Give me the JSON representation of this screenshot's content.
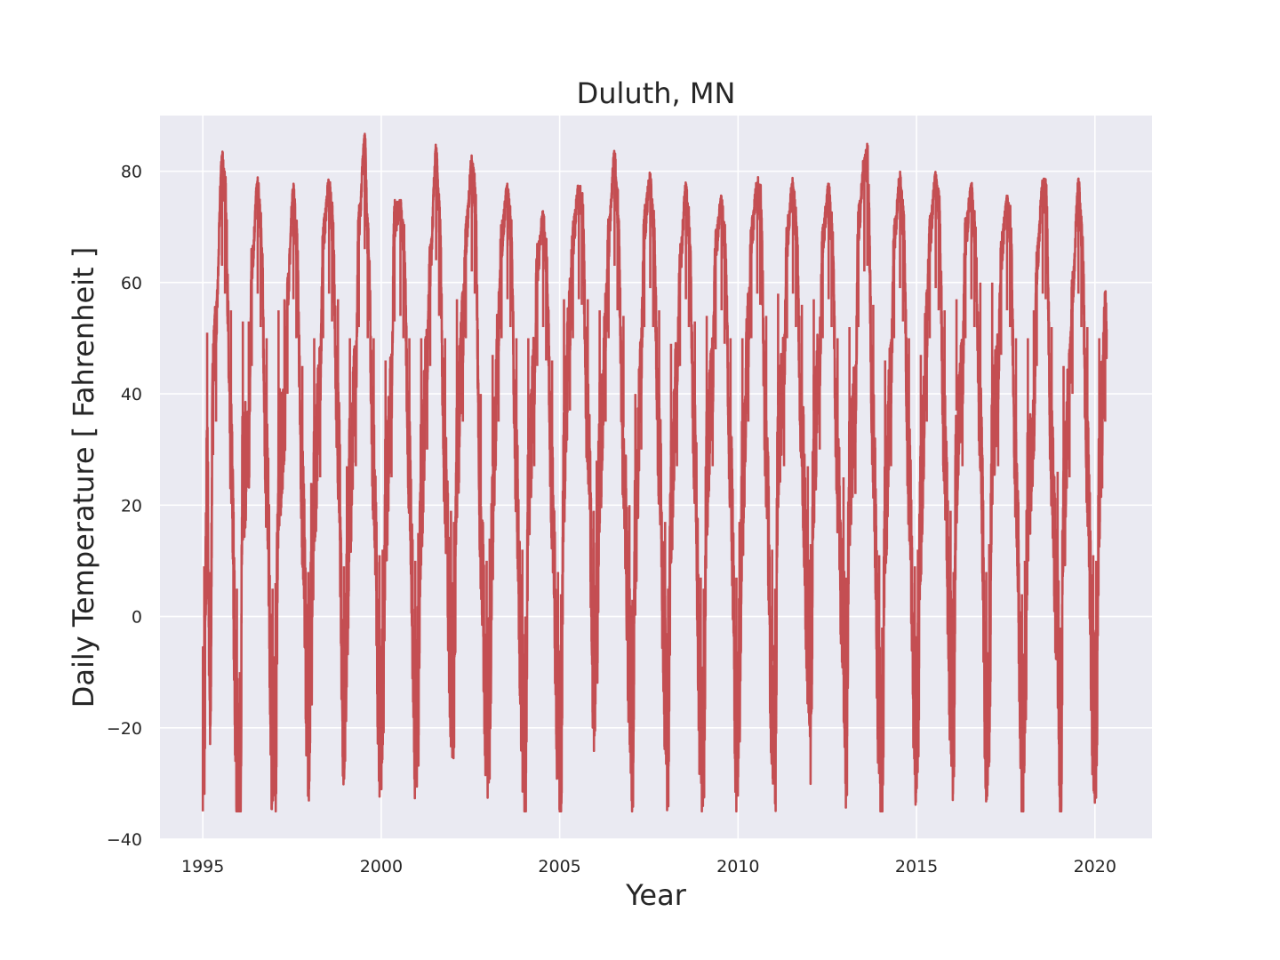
{
  "chart_data": {
    "type": "line",
    "title": "Duluth, MN",
    "xlabel": "Year",
    "ylabel": "Daily Temperature [ Fahrenheit ]",
    "xlim": [
      1993.8,
      2021.6
    ],
    "ylim": [
      -40,
      90
    ],
    "x_ticks": [
      "1995",
      "2000",
      "2005",
      "2010",
      "2015",
      "2020"
    ],
    "y_ticks": [
      "−40",
      "−20",
      "0",
      "20",
      "40",
      "60",
      "80"
    ],
    "grid": true,
    "legend": "none",
    "background_color": "#eaeaf2",
    "series": [
      {
        "color": "#c44e52",
        "x_start": "1995-01-01",
        "x_end": "2020-04-30",
        "points": [
          [
            "1995-01",
            -11
          ],
          [
            "1995-02",
            31
          ],
          [
            "1995-03",
            -12
          ],
          [
            "1995-04",
            49
          ],
          [
            "1995-05",
            55
          ],
          [
            "1995-07",
            83
          ],
          [
            "1995-08",
            78
          ],
          [
            "1995-10",
            35
          ],
          [
            "1995-12",
            -15
          ],
          [
            "1996-01",
            -30
          ],
          [
            "1996-02",
            33
          ],
          [
            "1996-04",
            33
          ],
          [
            "1996-05",
            65
          ],
          [
            "1996-07",
            78
          ],
          [
            "1996-08",
            72
          ],
          [
            "1996-10",
            30
          ],
          [
            "1996-12",
            -15
          ],
          [
            "1997-01",
            -14
          ],
          [
            "1997-02",
            35
          ],
          [
            "1997-04",
            37
          ],
          [
            "1997-05",
            60
          ],
          [
            "1997-07",
            77
          ],
          [
            "1997-08",
            70
          ],
          [
            "1997-10",
            25
          ],
          [
            "1997-12",
            -12
          ],
          [
            "1998-01",
            4
          ],
          [
            "1998-02",
            30
          ],
          [
            "1998-04",
            45
          ],
          [
            "1998-05",
            70
          ],
          [
            "1998-07",
            78
          ],
          [
            "1998-08",
            73
          ],
          [
            "1998-10",
            37
          ],
          [
            "1998-12",
            -11
          ],
          [
            "1999-01",
            7
          ],
          [
            "1999-02",
            30
          ],
          [
            "1999-04",
            47
          ],
          [
            "1999-05",
            72
          ],
          [
            "1999-07",
            86
          ],
          [
            "1999-08",
            70
          ],
          [
            "1999-10",
            30
          ],
          [
            "1999-12",
            -9
          ],
          [
            "2000-01",
            -8
          ],
          [
            "2000-02",
            26
          ],
          [
            "2000-04",
            45
          ],
          [
            "2000-05",
            73
          ],
          [
            "2000-07",
            74
          ],
          [
            "2000-08",
            70
          ],
          [
            "2000-10",
            30
          ],
          [
            "2000-12",
            -10
          ],
          [
            "2001-01",
            -5
          ],
          [
            "2001-02",
            30
          ],
          [
            "2001-04",
            50
          ],
          [
            "2001-05",
            65
          ],
          [
            "2001-07",
            84
          ],
          [
            "2001-08",
            74
          ],
          [
            "2001-10",
            30
          ],
          [
            "2001-12",
            -1
          ],
          [
            "2002-01",
            -3
          ],
          [
            "2002-02",
            37
          ],
          [
            "2002-04",
            55
          ],
          [
            "2002-05",
            70
          ],
          [
            "2002-07",
            82
          ],
          [
            "2002-08",
            78
          ],
          [
            "2002-10",
            20
          ],
          [
            "2002-12",
            -10
          ],
          [
            "2003-01",
            -6
          ],
          [
            "2003-02",
            27
          ],
          [
            "2003-04",
            55
          ],
          [
            "2003-05",
            70
          ],
          [
            "2003-07",
            77
          ],
          [
            "2003-08",
            72
          ],
          [
            "2003-10",
            30
          ],
          [
            "2003-12",
            -8
          ],
          [
            "2004-01",
            -20
          ],
          [
            "2004-02",
            30
          ],
          [
            "2004-04",
            47
          ],
          [
            "2004-05",
            65
          ],
          [
            "2004-07",
            72
          ],
          [
            "2004-08",
            66
          ],
          [
            "2004-10",
            26
          ],
          [
            "2004-12",
            -12
          ],
          [
            "2005-01",
            -16
          ],
          [
            "2005-02",
            37
          ],
          [
            "2005-04",
            57
          ],
          [
            "2005-05",
            70
          ],
          [
            "2005-07",
            77
          ],
          [
            "2005-08",
            76
          ],
          [
            "2005-10",
            37
          ],
          [
            "2005-12",
            -1
          ],
          [
            "2006-01",
            8
          ],
          [
            "2006-02",
            35
          ],
          [
            "2006-04",
            55
          ],
          [
            "2006-05",
            70
          ],
          [
            "2006-07",
            83
          ],
          [
            "2006-08",
            75
          ],
          [
            "2006-10",
            34
          ],
          [
            "2006-12",
            0
          ],
          [
            "2007-01",
            -17
          ],
          [
            "2007-02",
            20
          ],
          [
            "2007-04",
            50
          ],
          [
            "2007-05",
            72
          ],
          [
            "2007-07",
            79
          ],
          [
            "2007-08",
            72
          ],
          [
            "2007-10",
            35
          ],
          [
            "2007-12",
            -3
          ],
          [
            "2008-01",
            -15
          ],
          [
            "2008-02",
            29
          ],
          [
            "2008-04",
            47
          ],
          [
            "2008-05",
            65
          ],
          [
            "2008-07",
            77
          ],
          [
            "2008-08",
            72
          ],
          [
            "2008-10",
            33
          ],
          [
            "2008-12",
            -13
          ],
          [
            "2009-01",
            -15
          ],
          [
            "2009-02",
            34
          ],
          [
            "2009-04",
            47
          ],
          [
            "2009-05",
            68
          ],
          [
            "2009-07",
            75
          ],
          [
            "2009-08",
            69
          ],
          [
            "2009-10",
            30
          ],
          [
            "2009-12",
            -13
          ],
          [
            "2010-01",
            -3
          ],
          [
            "2010-02",
            30
          ],
          [
            "2010-04",
            55
          ],
          [
            "2010-05",
            70
          ],
          [
            "2010-07",
            78
          ],
          [
            "2010-08",
            76
          ],
          [
            "2010-10",
            34
          ],
          [
            "2010-12",
            -8
          ],
          [
            "2011-01",
            -15
          ],
          [
            "2011-02",
            38
          ],
          [
            "2011-04",
            47
          ],
          [
            "2011-05",
            70
          ],
          [
            "2011-07",
            78
          ],
          [
            "2011-08",
            72
          ],
          [
            "2011-10",
            36
          ],
          [
            "2011-12",
            7
          ],
          [
            "2012-01",
            -7
          ],
          [
            "2012-02",
            37
          ],
          [
            "2012-04",
            50
          ],
          [
            "2012-05",
            70
          ],
          [
            "2012-07",
            77
          ],
          [
            "2012-08",
            72
          ],
          [
            "2012-10",
            30
          ],
          [
            "2012-12",
            5
          ],
          [
            "2013-01",
            -13
          ],
          [
            "2013-02",
            32
          ],
          [
            "2013-04",
            42
          ],
          [
            "2013-05",
            72
          ],
          [
            "2013-07",
            82
          ],
          [
            "2013-08",
            83
          ],
          [
            "2013-10",
            36
          ],
          [
            "2013-12",
            -9
          ],
          [
            "2014-01",
            -22
          ],
          [
            "2014-02",
            26
          ],
          [
            "2014-04",
            47
          ],
          [
            "2014-05",
            70
          ],
          [
            "2014-07",
            79
          ],
          [
            "2014-08",
            73
          ],
          [
            "2014-10",
            30
          ],
          [
            "2014-12",
            -11
          ],
          [
            "2015-01",
            -8
          ],
          [
            "2015-02",
            27
          ],
          [
            "2015-04",
            55
          ],
          [
            "2015-05",
            70
          ],
          [
            "2015-07",
            79
          ],
          [
            "2015-08",
            75
          ],
          [
            "2015-10",
            35
          ],
          [
            "2015-12",
            -1
          ],
          [
            "2016-01",
            -12
          ],
          [
            "2016-02",
            37
          ],
          [
            "2016-04",
            47
          ],
          [
            "2016-05",
            70
          ],
          [
            "2016-07",
            77
          ],
          [
            "2016-08",
            72
          ],
          [
            "2016-10",
            40
          ],
          [
            "2016-12",
            -12
          ],
          [
            "2017-01",
            -7
          ],
          [
            "2017-02",
            40
          ],
          [
            "2017-04",
            47
          ],
          [
            "2017-05",
            67
          ],
          [
            "2017-07",
            75
          ],
          [
            "2017-08",
            72
          ],
          [
            "2017-10",
            30
          ],
          [
            "2017-12",
            -16
          ],
          [
            "2018-01",
            -10
          ],
          [
            "2018-02",
            30
          ],
          [
            "2018-04",
            35
          ],
          [
            "2018-05",
            65
          ],
          [
            "2018-07",
            78
          ],
          [
            "2018-08",
            77
          ],
          [
            "2018-10",
            32
          ],
          [
            "2018-12",
            6
          ],
          [
            "2019-01",
            -22
          ],
          [
            "2019-02",
            25
          ],
          [
            "2019-04",
            45
          ],
          [
            "2019-05",
            60
          ],
          [
            "2019-07",
            78
          ],
          [
            "2019-08",
            72
          ],
          [
            "2019-10",
            32
          ],
          [
            "2019-12",
            -9
          ],
          [
            "2020-01",
            -10
          ],
          [
            "2020-02",
            30
          ],
          [
            "2020-03",
            43
          ],
          [
            "2020-04",
            55
          ]
        ]
      }
    ]
  }
}
